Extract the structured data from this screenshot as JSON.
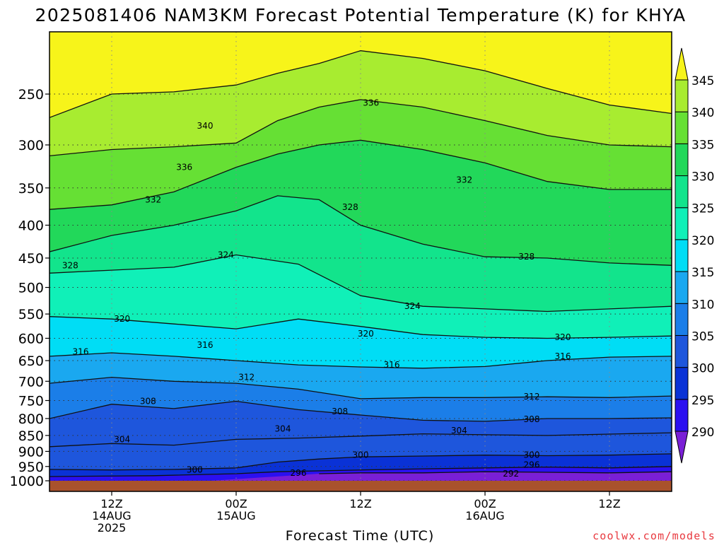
{
  "chart_data": {
    "type": "heatmap",
    "title": "2025081406 NAM3KM Forecast Potential Temperature (K) for KHYA",
    "xlabel": "Forecast Time (UTC)",
    "ylabel": "",
    "credit": "coolwx.com/models",
    "x_range_hours": [
      0,
      60
    ],
    "x_ticks": [
      {
        "hour": 6,
        "labels": [
          "12Z",
          "14AUG",
          "2025"
        ]
      },
      {
        "hour": 18,
        "labels": [
          "00Z",
          "15AUG"
        ]
      },
      {
        "hour": 30,
        "labels": [
          "12Z"
        ]
      },
      {
        "hour": 42,
        "labels": [
          "00Z",
          "16AUG"
        ]
      },
      {
        "hour": 54,
        "labels": [
          "12Z"
        ]
      }
    ],
    "y_axis": {
      "scale": "log",
      "range_hPa": [
        1010,
        200
      ],
      "inverted": true
    },
    "y_ticks": [
      1000,
      950,
      900,
      850,
      800,
      750,
      700,
      650,
      600,
      550,
      500,
      450,
      400,
      350,
      300,
      250
    ],
    "grid": true,
    "colorbar": {
      "levels": [
        290,
        295,
        300,
        305,
        310,
        315,
        320,
        325,
        330,
        335,
        340,
        345
      ],
      "labels": [
        "290",
        "295",
        "300",
        "305",
        "310",
        "315",
        "320",
        "325",
        "330",
        "335",
        "340",
        "345"
      ],
      "colors": [
        "#7a1fd6",
        "#2b10f0",
        "#0a32d6",
        "#1e56dc",
        "#1b7ee8",
        "#1aa8f0",
        "#00ddf5",
        "#10f0b8",
        "#12e48c",
        "#22d85a",
        "#66e034",
        "#a8ec30",
        "#f7f41a"
      ]
    },
    "ground_color": "#a9522c",
    "series": [
      {
        "name": "292",
        "values": [
          [
            26,
            975
          ],
          [
            30,
            972
          ],
          [
            36,
            972
          ],
          [
            42,
            968
          ],
          [
            48,
            970
          ],
          [
            54,
            972
          ],
          [
            60,
            968
          ]
        ]
      },
      {
        "name": "296",
        "values": [
          [
            0,
            985
          ],
          [
            10,
            982
          ],
          [
            18,
            975
          ],
          [
            22,
            968
          ],
          [
            30,
            962
          ],
          [
            36,
            958
          ],
          [
            42,
            955
          ],
          [
            48,
            952
          ],
          [
            54,
            955
          ],
          [
            60,
            950
          ]
        ]
      },
      {
        "name": "300",
        "values": [
          [
            0,
            960
          ],
          [
            6,
            962
          ],
          [
            12,
            960
          ],
          [
            18,
            955
          ],
          [
            22,
            935
          ],
          [
            26,
            925
          ],
          [
            30,
            918
          ],
          [
            36,
            915
          ],
          [
            42,
            912
          ],
          [
            48,
            914
          ],
          [
            54,
            912
          ],
          [
            60,
            908
          ]
        ]
      },
      {
        "name": "304",
        "values": [
          [
            0,
            885
          ],
          [
            6,
            875
          ],
          [
            12,
            880
          ],
          [
            18,
            862
          ],
          [
            24,
            858
          ],
          [
            30,
            852
          ],
          [
            36,
            845
          ],
          [
            42,
            848
          ],
          [
            48,
            850
          ],
          [
            54,
            846
          ],
          [
            60,
            842
          ]
        ]
      },
      {
        "name": "308",
        "values": [
          [
            0,
            800
          ],
          [
            6,
            760
          ],
          [
            12,
            772
          ],
          [
            18,
            752
          ],
          [
            24,
            775
          ],
          [
            30,
            790
          ],
          [
            36,
            805
          ],
          [
            42,
            808
          ],
          [
            48,
            800
          ],
          [
            54,
            800
          ],
          [
            60,
            798
          ]
        ]
      },
      {
        "name": "312",
        "values": [
          [
            0,
            705
          ],
          [
            6,
            690
          ],
          [
            12,
            700
          ],
          [
            18,
            705
          ],
          [
            24,
            720
          ],
          [
            30,
            745
          ],
          [
            36,
            742
          ],
          [
            42,
            742
          ],
          [
            48,
            740
          ],
          [
            54,
            742
          ],
          [
            60,
            738
          ]
        ]
      },
      {
        "name": "316",
        "values": [
          [
            0,
            640
          ],
          [
            6,
            632
          ],
          [
            12,
            640
          ],
          [
            18,
            650
          ],
          [
            24,
            660
          ],
          [
            30,
            665
          ],
          [
            36,
            668
          ],
          [
            42,
            664
          ],
          [
            48,
            650
          ],
          [
            54,
            642
          ],
          [
            60,
            640
          ]
        ]
      },
      {
        "name": "320",
        "values": [
          [
            0,
            555
          ],
          [
            6,
            560
          ],
          [
            12,
            570
          ],
          [
            18,
            580
          ],
          [
            24,
            560
          ],
          [
            30,
            575
          ],
          [
            36,
            592
          ],
          [
            42,
            598
          ],
          [
            48,
            600
          ],
          [
            54,
            598
          ],
          [
            60,
            595
          ]
        ]
      },
      {
        "name": "324",
        "values": [
          [
            0,
            475
          ],
          [
            6,
            470
          ],
          [
            12,
            465
          ],
          [
            18,
            445
          ],
          [
            24,
            460
          ],
          [
            30,
            515
          ],
          [
            36,
            535
          ],
          [
            42,
            540
          ],
          [
            48,
            545
          ],
          [
            54,
            540
          ],
          [
            60,
            535
          ]
        ]
      },
      {
        "name": "328",
        "values": [
          [
            0,
            440
          ],
          [
            6,
            415
          ],
          [
            12,
            400
          ],
          [
            18,
            380
          ],
          [
            22,
            360
          ],
          [
            26,
            365
          ],
          [
            30,
            400
          ],
          [
            36,
            428
          ],
          [
            42,
            448
          ],
          [
            48,
            450
          ],
          [
            54,
            458
          ],
          [
            60,
            462
          ]
        ]
      },
      {
        "name": "332",
        "values": [
          [
            0,
            378
          ],
          [
            6,
            372
          ],
          [
            12,
            355
          ],
          [
            18,
            325
          ],
          [
            22,
            310
          ],
          [
            26,
            300
          ],
          [
            30,
            295
          ],
          [
            36,
            305
          ],
          [
            42,
            320
          ],
          [
            48,
            342
          ],
          [
            54,
            352
          ],
          [
            60,
            352
          ]
        ]
      },
      {
        "name": "336",
        "values": [
          [
            0,
            312
          ],
          [
            6,
            305
          ],
          [
            12,
            302
          ],
          [
            18,
            298
          ],
          [
            22,
            275
          ],
          [
            26,
            262
          ],
          [
            30,
            255
          ],
          [
            36,
            262
          ],
          [
            42,
            275
          ],
          [
            48,
            290
          ],
          [
            54,
            300
          ],
          [
            60,
            302
          ]
        ]
      },
      {
        "name": "340",
        "values": [
          [
            0,
            272
          ],
          [
            6,
            250
          ],
          [
            12,
            248
          ],
          [
            18,
            242
          ],
          [
            22,
            232
          ],
          [
            26,
            224
          ],
          [
            30,
            214
          ],
          [
            36,
            220
          ],
          [
            42,
            230
          ],
          [
            48,
            245
          ],
          [
            54,
            260
          ],
          [
            60,
            268
          ]
        ]
      }
    ],
    "contour_labels": [
      {
        "text": "292",
        "hour": 44.5,
        "pres": 975
      },
      {
        "text": "296",
        "hour": 24,
        "pres": 972
      },
      {
        "text": "296",
        "hour": 46.5,
        "pres": 945
      },
      {
        "text": "300",
        "hour": 14,
        "pres": 962
      },
      {
        "text": "300",
        "hour": 30,
        "pres": 912
      },
      {
        "text": "300",
        "hour": 46.5,
        "pres": 912
      },
      {
        "text": "304",
        "hour": 7,
        "pres": 862
      },
      {
        "text": "304",
        "hour": 22.5,
        "pres": 830
      },
      {
        "text": "304",
        "hour": 39.5,
        "pres": 835
      },
      {
        "text": "308",
        "hour": 9.5,
        "pres": 752
      },
      {
        "text": "308",
        "hour": 28,
        "pres": 780
      },
      {
        "text": "308",
        "hour": 46.5,
        "pres": 802
      },
      {
        "text": "312",
        "hour": 19,
        "pres": 690
      },
      {
        "text": "312",
        "hour": 46.5,
        "pres": 740
      },
      {
        "text": "316",
        "hour": 3,
        "pres": 630
      },
      {
        "text": "316",
        "hour": 15,
        "pres": 615
      },
      {
        "text": "316",
        "hour": 33,
        "pres": 660
      },
      {
        "text": "316",
        "hour": 49.5,
        "pres": 640
      },
      {
        "text": "320",
        "hour": 7,
        "pres": 560
      },
      {
        "text": "320",
        "hour": 30.5,
        "pres": 590
      },
      {
        "text": "320",
        "hour": 49.5,
        "pres": 598
      },
      {
        "text": "324",
        "hour": 17,
        "pres": 445
      },
      {
        "text": "324",
        "hour": 35,
        "pres": 535
      },
      {
        "text": "328",
        "hour": 2,
        "pres": 462
      },
      {
        "text": "328",
        "hour": 29,
        "pres": 375
      },
      {
        "text": "328",
        "hour": 46,
        "pres": 448
      },
      {
        "text": "332",
        "hour": 10,
        "pres": 365
      },
      {
        "text": "332",
        "hour": 40,
        "pres": 340
      },
      {
        "text": "336",
        "hour": 13,
        "pres": 325
      },
      {
        "text": "336",
        "hour": 31,
        "pres": 258
      },
      {
        "text": "340",
        "hour": 15,
        "pres": 280
      }
    ]
  }
}
